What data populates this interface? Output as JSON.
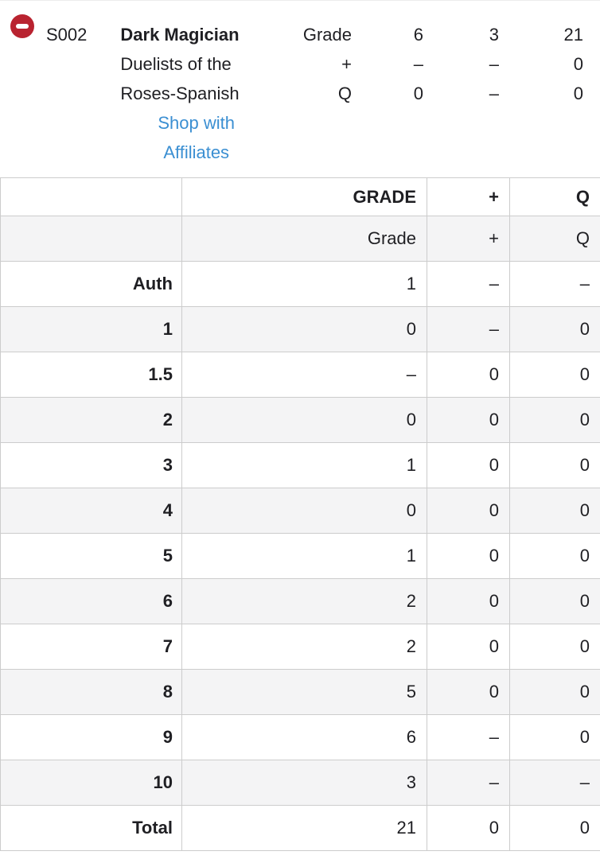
{
  "header": {
    "remove_button_icon": "minus-circle-icon",
    "card_number": "S002",
    "card_name": "Dark Magician",
    "set_lines": [
      "Duelists of the",
      "Roses-Spanish"
    ],
    "link_lines": [
      "Shop with",
      "Affiliates"
    ],
    "stats_rows": [
      {
        "label": "Grade",
        "values": [
          "6",
          "3",
          "21"
        ]
      },
      {
        "label": "+",
        "values": [
          "–",
          "–",
          "0"
        ]
      },
      {
        "label": "Q",
        "values": [
          "0",
          "–",
          "0"
        ]
      }
    ]
  },
  "table": {
    "header_row_1": {
      "label": "",
      "cols": [
        "GRADE",
        "+",
        "Q"
      ]
    },
    "header_row_2": {
      "label": "",
      "cols": [
        "Grade",
        "+",
        "Q"
      ]
    },
    "rows": [
      {
        "label": "Auth",
        "values": [
          "1",
          "–",
          "–"
        ]
      },
      {
        "label": "1",
        "values": [
          "0",
          "–",
          "0"
        ]
      },
      {
        "label": "1.5",
        "values": [
          "–",
          "0",
          "0"
        ]
      },
      {
        "label": "2",
        "values": [
          "0",
          "0",
          "0"
        ]
      },
      {
        "label": "3",
        "values": [
          "1",
          "0",
          "0"
        ]
      },
      {
        "label": "4",
        "values": [
          "0",
          "0",
          "0"
        ]
      },
      {
        "label": "5",
        "values": [
          "1",
          "0",
          "0"
        ]
      },
      {
        "label": "6",
        "values": [
          "2",
          "0",
          "0"
        ]
      },
      {
        "label": "7",
        "values": [
          "2",
          "0",
          "0"
        ]
      },
      {
        "label": "8",
        "values": [
          "5",
          "0",
          "0"
        ]
      },
      {
        "label": "9",
        "values": [
          "6",
          "–",
          "0"
        ]
      },
      {
        "label": "10",
        "values": [
          "3",
          "–",
          "–"
        ]
      },
      {
        "label": "Total",
        "values": [
          "21",
          "0",
          "0"
        ]
      }
    ]
  },
  "colors": {
    "accent_red": "#b92330",
    "link_blue": "#3b8fd2",
    "row_stripe": "#f4f4f5",
    "grid_border": "#cccccc",
    "text": "#1f1f23"
  }
}
